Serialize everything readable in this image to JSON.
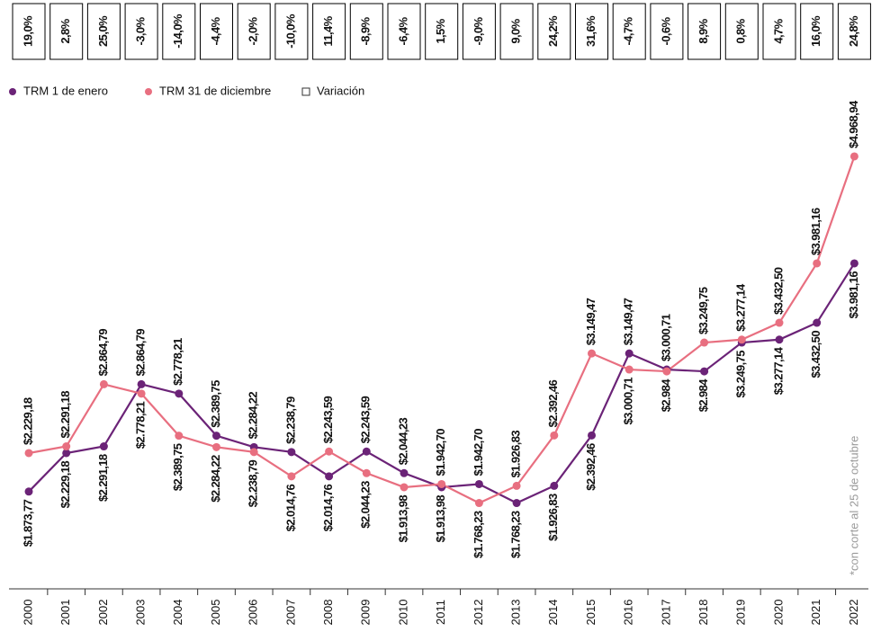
{
  "chart_data": {
    "type": "line",
    "annotation": "*con corte al 25 de octubre",
    "categories": [
      "2000",
      "2001",
      "2002",
      "2003",
      "2004",
      "2005",
      "2006",
      "2007",
      "2008",
      "2009",
      "2010",
      "2011",
      "2012",
      "2013",
      "2014",
      "2015",
      "2016",
      "2017",
      "2018",
      "2019",
      "2020",
      "2021",
      "2022"
    ],
    "ylim": [
      1100,
      5500
    ],
    "series": [
      {
        "name": "TRM 1 de enero",
        "color": "#6b2377",
        "values": [
          1873.77,
          2229.18,
          2291.18,
          2864.79,
          2778.21,
          2389.75,
          2284.22,
          2238.79,
          2014.76,
          2243.59,
          2044.23,
          1913.98,
          1942.7,
          1768.23,
          1926.83,
          2392.46,
          3149.47,
          3000.71,
          2984,
          3249.75,
          3277.14,
          3432.5,
          3981.16
        ],
        "value_labels": [
          "$1.873,77",
          "$2.229,18",
          "$2.291,18",
          "$2.864,79",
          "$2.778,21",
          "$2.389,75",
          "$2.284,22",
          "$2.238,79",
          "$2.014,76",
          "$2.243,59",
          "$2.044,23",
          "$1.913,98",
          "$1.942,70",
          "$1.768,23",
          "$1.926,83",
          "$2.392,46",
          "$3.149,47",
          "$3.000,71",
          "$2.984",
          "$3.249,75",
          "$3.277,14",
          "$3.432,50",
          "$3.981,16"
        ]
      },
      {
        "name": "TRM 31 de diciembre",
        "color": "#e86f80",
        "values": [
          2229.18,
          2291.18,
          2864.79,
          2778.21,
          2389.75,
          2284.22,
          2238.79,
          2014.76,
          2243.59,
          2044.23,
          1913.98,
          1942.7,
          1768.23,
          1926.83,
          2392.46,
          3149.47,
          3000.71,
          2984,
          3249.75,
          3277.14,
          3432.5,
          3981.16,
          4968.94
        ],
        "value_labels": [
          "$2.229,18",
          "$2.291,18",
          "$2.864,79",
          "$2.778,21",
          "$2.389,75",
          "$2.284,22",
          "$2.238,79",
          "$2.014,76",
          "$2.243,59",
          "$2.044,23",
          "$1.913,98",
          "$1.942,70",
          "$1.768,23",
          "$1.926,83",
          "$2.392,46",
          "$3.149,47",
          "$3.000,71",
          "$2.984",
          "$3.249,75",
          "$3.277,14",
          "$3.432,50",
          "$3.981,16",
          "$4.968,94"
        ]
      },
      {
        "name": "Variación",
        "color": "#000000",
        "values": [
          19.0,
          2.8,
          25.0,
          -3.0,
          -14.0,
          -4.4,
          -2.0,
          -10.0,
          11.4,
          -8.9,
          -6.4,
          1.5,
          -9.0,
          9.0,
          24.2,
          31.6,
          -4.7,
          -0.6,
          8.9,
          0.8,
          4.7,
          16.0,
          24.8
        ],
        "value_labels": [
          "19,0%",
          "2,8%",
          "25,0%",
          "-3,0%",
          "-14,0%",
          "-4,4%",
          "-2,0%",
          "-10,0%",
          "11,4%",
          "-8,9%",
          "-6,4%",
          "1,5%",
          "-9,0%",
          "9,0%",
          "24,2%",
          "31,6%",
          "-4,7%",
          "-0,6%",
          "8,9%",
          "0,8%",
          "4,7%",
          "16,0%",
          "24,8%"
        ]
      }
    ]
  }
}
